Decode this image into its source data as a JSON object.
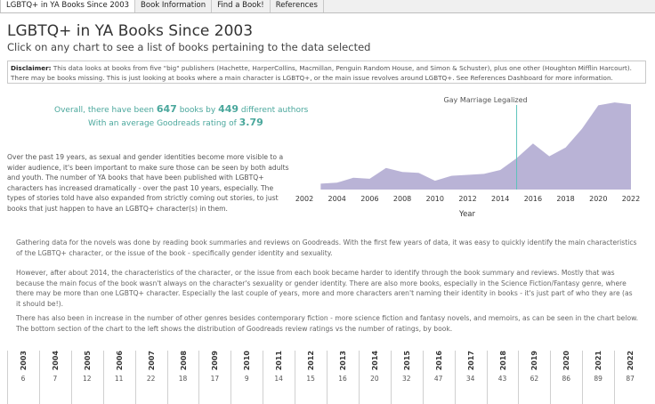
{
  "tabs": [
    {
      "label": "LGBTQ+ in YA Books Since 2003",
      "active": true
    },
    {
      "label": "Book Information",
      "active": false
    },
    {
      "label": "Find a Book!",
      "active": false
    },
    {
      "label": "References",
      "active": false
    }
  ],
  "header": {
    "title": "LGBTQ+ in YA Books Since 2003",
    "subtitle": "Click on any chart to see a list of books pertaining to the data selected"
  },
  "disclaimer": {
    "label": "Disclaimer:",
    "text": " This data looks at books from five \"big\" publishers (Hachette, HarperCollins, Macmillan, Penguin Random House, and Simon & Schuster), plus one other (Houghton Mifflin Harcourt). There may be books missing. This is just looking at books where a main character is LGBTQ+, or the main issue revolves around LGBTQ+. See References Dashboard for more information."
  },
  "stats": {
    "line1_pre": "Overall, there have been ",
    "books": "647",
    "line1_mid": " books by ",
    "authors": "449",
    "line1_post": " different authors",
    "line2_pre": "With an average Goodreads rating of ",
    "rating": "3.79"
  },
  "intro_paragraph": "Over the past 19 years, as sexual and gender identities become more visible to a wider audience, it's been important to make sure those can be seen by both adults and youth. The number of YA books that have been published with LGBTQ+ characters has increased dramatically - over the past 10 years, especially. The types of stories told have also expanded from strictly coming out stories, to just books that just happen to have an LGBTQ+ character(s) in them.",
  "paragraphs": [
    "Gathering data for the novels was done by reading book summaries and reviews on Goodreads. With the first few years of data, it was easy to quickly identify the main characteristics of the LGBTQ+ character, or the issue of the book - specifically gender identity and sexuality.",
    "However, after about 2014, the characteristics of the character, or the issue from each book became harder to identify through the book summary and reviews. Mostly that was because the main focus of the book wasn't always on the character's sexuality or gender identity. There are also more books, especially in the Science Fiction/Fantasy genre, where there may be more than one LGBTQ+ character. Especially the last couple of years, more and more characters aren't naming their identity in books - it's just part of who they are (as it should be!).",
    "There has also been in increase in the number of other genres besides contemporary fiction - more science fiction and fantasy novels, and memoirs, as can be seen in the chart below. The bottom section of the chart to the left shows the distribution of Goodreads review ratings vs the number of ratings, by book."
  ],
  "chart_data": {
    "type": "area",
    "title": "",
    "xlabel": "Year",
    "ylabel": "",
    "x": [
      2003,
      2004,
      2005,
      2006,
      2007,
      2008,
      2009,
      2010,
      2011,
      2012,
      2013,
      2014,
      2015,
      2016,
      2017,
      2018,
      2019,
      2020,
      2021,
      2022
    ],
    "values": [
      6,
      7,
      12,
      11,
      22,
      18,
      17,
      9,
      14,
      15,
      16,
      20,
      32,
      47,
      34,
      43,
      62,
      86,
      89,
      87
    ],
    "xticks": [
      "2002",
      "2004",
      "2006",
      "2008",
      "2010",
      "2012",
      "2014",
      "2016",
      "2018",
      "2020",
      "2022"
    ],
    "xlim": [
      2002,
      2022.6
    ],
    "ylim": [
      0,
      100
    ],
    "annotation": {
      "label": "Gay Marriage Legalized",
      "x": 2015
    },
    "color": "#b9b3d6"
  },
  "year_counts": [
    {
      "year": "2003",
      "count": "6"
    },
    {
      "year": "2004",
      "count": "7"
    },
    {
      "year": "2005",
      "count": "12"
    },
    {
      "year": "2006",
      "count": "11"
    },
    {
      "year": "2007",
      "count": "22"
    },
    {
      "year": "2008",
      "count": "18"
    },
    {
      "year": "2009",
      "count": "17"
    },
    {
      "year": "2010",
      "count": "9"
    },
    {
      "year": "2011",
      "count": "14"
    },
    {
      "year": "2012",
      "count": "15"
    },
    {
      "year": "2013",
      "count": "16"
    },
    {
      "year": "2014",
      "count": "20"
    },
    {
      "year": "2015",
      "count": "32"
    },
    {
      "year": "2016",
      "count": "47"
    },
    {
      "year": "2017",
      "count": "34"
    },
    {
      "year": "2018",
      "count": "43"
    },
    {
      "year": "2019",
      "count": "62"
    },
    {
      "year": "2020",
      "count": "86"
    },
    {
      "year": "2021",
      "count": "89"
    },
    {
      "year": "2022",
      "count": "87"
    }
  ]
}
